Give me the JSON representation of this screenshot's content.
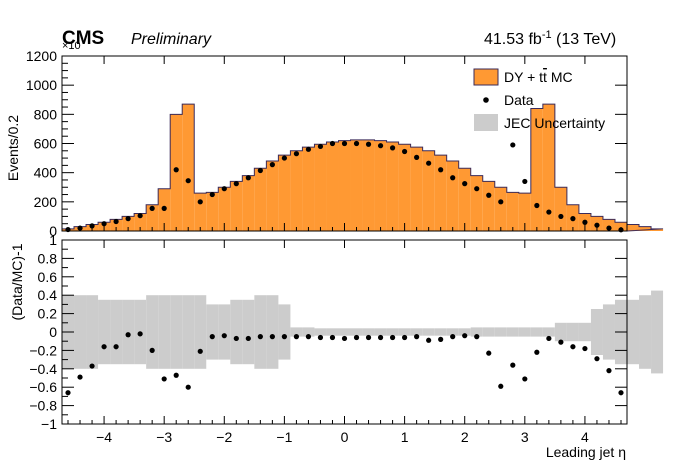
{
  "header": {
    "experiment": "CMS",
    "status": "Preliminary",
    "lumi_value": "41.53 fb",
    "lumi_exp": "-1",
    "energy": " (13 TeV)",
    "exponent": "×10"
  },
  "colors": {
    "mc_fill": "#ff9933",
    "mc_line": "#3a2a5a",
    "jec_band": "#cccccc",
    "data_marker": "#000000"
  },
  "chart_data": [
    {
      "type": "bar",
      "title": "",
      "xlabel": "",
      "ylabel": "Events/0.2",
      "xlim": [
        -4.7,
        4.7
      ],
      "ylim": [
        0,
        1200
      ],
      "y_ticks": [
        "0",
        "200",
        "400",
        "600",
        "800",
        "1000",
        "1200"
      ],
      "bin_width": 0.2,
      "legend": {
        "position": "top-right",
        "entries": [
          {
            "label": "DY + t",
            "bar": "t",
            "label_end": "  MC",
            "key": "mc"
          },
          {
            "label": "Data",
            "key": "data"
          },
          {
            "label": "JEC Uncertainty",
            "key": "jec"
          }
        ]
      },
      "series": [
        {
          "name": "DY + tt MC",
          "bin_edges_start": -4.7,
          "values": [
            15,
            30,
            45,
            60,
            80,
            100,
            120,
            180,
            290,
            800,
            870,
            260,
            265,
            300,
            340,
            380,
            430,
            480,
            520,
            550,
            575,
            595,
            610,
            620,
            625,
            625,
            620,
            610,
            595,
            575,
            550,
            520,
            480,
            430,
            380,
            340,
            300,
            265,
            260,
            840,
            870,
            300,
            180,
            120,
            100,
            80,
            60,
            45,
            30,
            15
          ]
        },
        {
          "name": "Data",
          "x": [
            -4.6,
            -4.4,
            -4.2,
            -4.0,
            -3.8,
            -3.6,
            -3.4,
            -3.2,
            -3.0,
            -2.8,
            -2.6,
            -2.4,
            -2.2,
            -2.0,
            -1.8,
            -1.6,
            -1.4,
            -1.2,
            -1.0,
            -0.8,
            -0.6,
            -0.4,
            -0.2,
            0.0,
            0.2,
            0.4,
            0.6,
            0.8,
            1.0,
            1.2,
            1.4,
            1.6,
            1.8,
            2.0,
            2.2,
            2.4,
            2.6,
            2.8,
            3.0,
            3.2,
            3.4,
            3.6,
            3.8,
            4.0,
            4.2,
            4.4,
            4.6
          ],
          "values": [
            10,
            20,
            35,
            50,
            65,
            85,
            105,
            155,
            155,
            420,
            345,
            200,
            250,
            290,
            325,
            365,
            415,
            455,
            500,
            530,
            560,
            580,
            600,
            600,
            600,
            595,
            585,
            570,
            545,
            505,
            465,
            420,
            365,
            325,
            290,
            245,
            200,
            590,
            340,
            175,
            130,
            100,
            85,
            60,
            40,
            20,
            8
          ]
        }
      ]
    },
    {
      "type": "scatter",
      "title": "",
      "xlabel": "Leading jet η",
      "ylabel": "(Data/MC)-1",
      "xlim": [
        -4.7,
        4.7
      ],
      "ylim": [
        -1,
        1
      ],
      "y_ticks": [
        "−1",
        "−0.8",
        "−0.6",
        "−0.4",
        "−0.2",
        "0",
        "0.2",
        "0.4",
        "0.6",
        "0.8",
        "1"
      ],
      "x_ticks": [
        "−4",
        "−3",
        "−2",
        "−1",
        "0",
        "1",
        "2",
        "3",
        "4"
      ],
      "grid": false,
      "series": [
        {
          "name": "Data",
          "x": [
            -4.6,
            -4.4,
            -4.2,
            -4.0,
            -3.8,
            -3.6,
            -3.4,
            -3.2,
            -3.0,
            -2.8,
            -2.6,
            -2.4,
            -2.2,
            -2.0,
            -1.8,
            -1.6,
            -1.4,
            -1.2,
            -1.0,
            -0.8,
            -0.6,
            -0.4,
            -0.2,
            0.0,
            0.2,
            0.4,
            0.6,
            0.8,
            1.0,
            1.2,
            1.4,
            1.6,
            1.8,
            2.0,
            2.2,
            2.4,
            2.6,
            2.8,
            3.0,
            3.2,
            3.4,
            3.6,
            3.8,
            4.0,
            4.2,
            4.4,
            4.6
          ],
          "values": [
            -0.66,
            -0.49,
            -0.37,
            -0.16,
            -0.16,
            -0.03,
            -0.02,
            -0.2,
            -0.51,
            -0.47,
            -0.6,
            -0.21,
            -0.05,
            -0.04,
            -0.07,
            -0.07,
            -0.05,
            -0.05,
            -0.05,
            -0.05,
            -0.05,
            -0.06,
            -0.06,
            -0.07,
            -0.06,
            -0.06,
            -0.06,
            -0.06,
            -0.06,
            -0.05,
            -0.09,
            -0.08,
            -0.05,
            -0.04,
            -0.05,
            -0.23,
            -0.59,
            -0.36,
            -0.51,
            -0.22,
            -0.07,
            -0.11,
            -0.16,
            -0.18,
            -0.29,
            -0.42,
            -0.66
          ]
        },
        {
          "name": "JEC Uncertainty",
          "bin_edges_start": -4.7,
          "bin_width": 0.2,
          "half_width": [
            0.4,
            0.4,
            0.4,
            0.35,
            0.35,
            0.35,
            0.35,
            0.4,
            0.4,
            0.4,
            0.4,
            0.4,
            0.3,
            0.3,
            0.35,
            0.35,
            0.4,
            0.4,
            0.3,
            0.05,
            0.05,
            0.04,
            0.04,
            0.04,
            0.04,
            0.04,
            0.04,
            0.04,
            0.04,
            0.04,
            0.04,
            0.04,
            0.04,
            0.04,
            0.05,
            0.05,
            0.05,
            0.05,
            0.05,
            0.05,
            0.05,
            0.1,
            0.1,
            0.1,
            0.25,
            0.3,
            0.35,
            0.35,
            0.4,
            0.45
          ]
        }
      ]
    }
  ]
}
